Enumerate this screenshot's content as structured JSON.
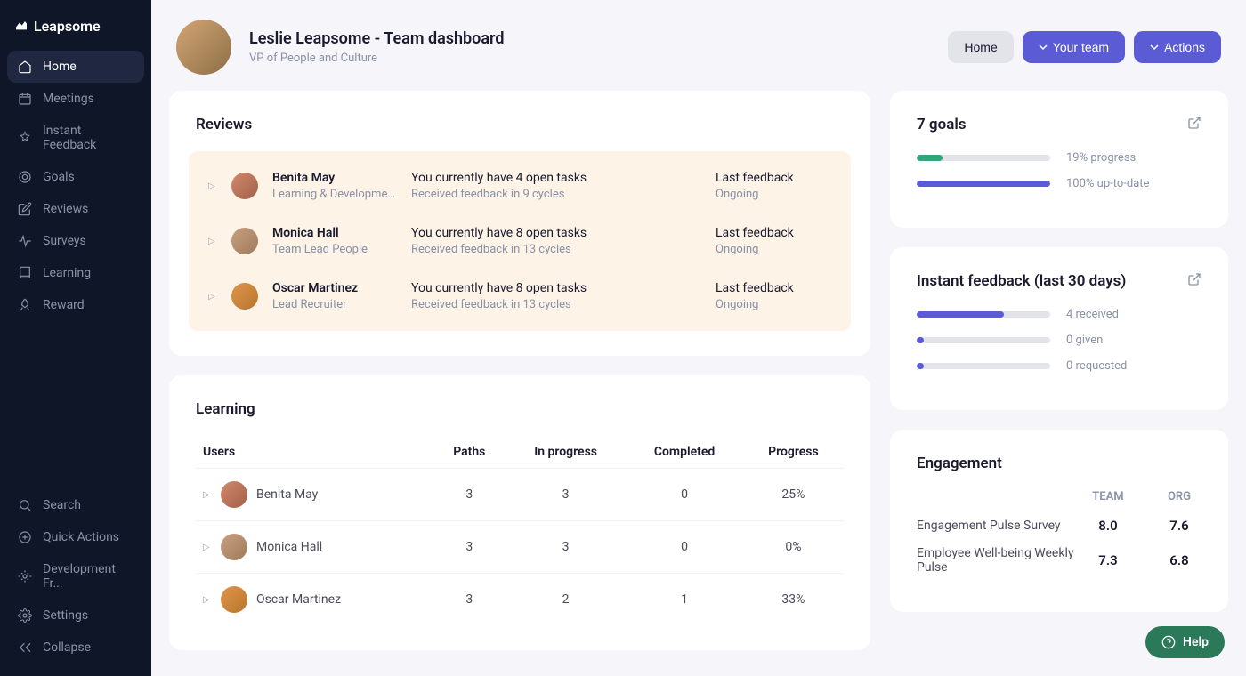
{
  "brand": "Leapsome",
  "nav": {
    "items": [
      {
        "label": "Home",
        "icon": "home"
      },
      {
        "label": "Meetings",
        "icon": "calendar"
      },
      {
        "label": "Instant Feedback",
        "icon": "feedback"
      },
      {
        "label": "Goals",
        "icon": "target"
      },
      {
        "label": "Reviews",
        "icon": "edit"
      },
      {
        "label": "Surveys",
        "icon": "pulse"
      },
      {
        "label": "Learning",
        "icon": "book"
      },
      {
        "label": "Reward",
        "icon": "rocket"
      }
    ],
    "bottom": [
      {
        "label": "Search",
        "icon": "search"
      },
      {
        "label": "Quick Actions",
        "icon": "plus"
      },
      {
        "label": "Development Fr...",
        "icon": "framework"
      },
      {
        "label": "Settings",
        "icon": "settings"
      },
      {
        "label": "Collapse",
        "icon": "collapse"
      }
    ]
  },
  "header": {
    "title": "Leslie Leapsome - Team dashboard",
    "subtitle": "VP of People and Culture",
    "buttons": {
      "home": "Home",
      "team": "Your team",
      "actions": "Actions"
    }
  },
  "reviews": {
    "title": "Reviews",
    "bg_color": "#fdf3e7",
    "rows": [
      {
        "name": "Benita May",
        "role": "Learning & Developmen...",
        "task_line": "You currently have 4 open tasks",
        "cycle_line": "Received feedback in 9 cycles",
        "status1": "Last feedback",
        "status2": "Ongoing",
        "avatar": "a"
      },
      {
        "name": "Monica Hall",
        "role": "Team Lead People",
        "task_line": "You currently have 8 open tasks",
        "cycle_line": "Received feedback in 13 cycles",
        "status1": "Last feedback",
        "status2": "Ongoing",
        "avatar": "b"
      },
      {
        "name": "Oscar Martinez",
        "role": "Lead Recruiter",
        "task_line": "You currently have 8 open tasks",
        "cycle_line": "Received feedback in 13 cycles",
        "status1": "Last feedback",
        "status2": "Ongoing",
        "avatar": "c"
      }
    ]
  },
  "learning": {
    "title": "Learning",
    "columns": [
      "Users",
      "Paths",
      "In progress",
      "Completed",
      "Progress"
    ],
    "rows": [
      {
        "user": "Benita May",
        "avatar": "a",
        "paths": "3",
        "in_progress": "3",
        "completed": "0",
        "progress": "25%"
      },
      {
        "user": "Monica Hall",
        "avatar": "b",
        "paths": "3",
        "in_progress": "3",
        "completed": "0",
        "progress": "0%"
      },
      {
        "user": "Oscar Martinez",
        "avatar": "c",
        "paths": "3",
        "in_progress": "2",
        "completed": "1",
        "progress": "33%"
      }
    ]
  },
  "goals": {
    "title": "7 goals",
    "bars": [
      {
        "pct": 19,
        "label": "19% progress",
        "color": "#2fa77a",
        "bg": "#e3e3ea"
      },
      {
        "pct": 100,
        "label": "100% up-to-date",
        "color": "#5b5bd6",
        "bg": "#e3e3ea"
      }
    ]
  },
  "feedback": {
    "title": "Instant feedback (last 30 days)",
    "bars": [
      {
        "pct": 65,
        "label": "4 received",
        "color": "#5b5bd6"
      },
      {
        "pct": 5,
        "label": "0 given",
        "color": "#5b5bd6"
      },
      {
        "pct": 5,
        "label": "0 requested",
        "color": "#5b5bd6"
      }
    ]
  },
  "engagement": {
    "title": "Engagement",
    "col1": "TEAM",
    "col2": "ORG",
    "rows": [
      {
        "label": "Engagement Pulse Survey",
        "team": "8.0",
        "org": "7.6"
      },
      {
        "label": "Employee Well-being Weekly Pulse",
        "team": "7.3",
        "org": "6.8"
      }
    ]
  },
  "help": "Help"
}
